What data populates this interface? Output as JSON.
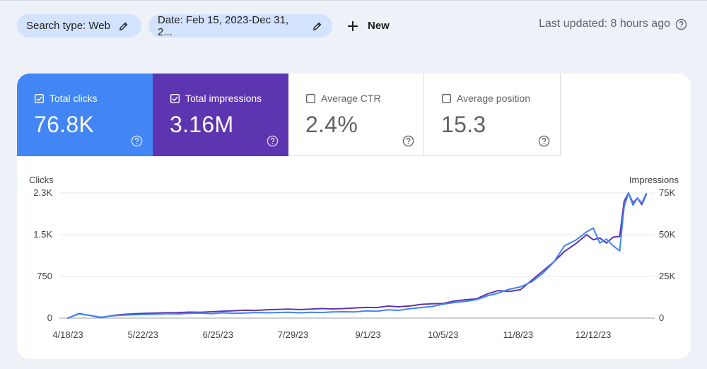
{
  "filters": {
    "search_type": "Search type: Web",
    "date": "Date: Feb 15, 2023-Dec 31, 2...",
    "new_label": "New"
  },
  "last_updated": "Last updated: 8 hours ago",
  "metrics": {
    "clicks": {
      "label": "Total clicks",
      "value": "76.8K",
      "checked": true
    },
    "impressions": {
      "label": "Total impressions",
      "value": "3.16M",
      "checked": true
    },
    "ctr": {
      "label": "Average CTR",
      "value": "2.4%",
      "checked": false
    },
    "position": {
      "label": "Average position",
      "value": "15.3",
      "checked": false
    }
  },
  "colors": {
    "clicks": "#4285f4",
    "impressions": "#5e35b1",
    "chip": "#d3e3fd",
    "background": "#eef2f8"
  },
  "chart_data": {
    "type": "line",
    "left_axis_label": "Clicks",
    "right_axis_label": "Impressions",
    "left_ticks": [
      "0",
      "750",
      "1.5K",
      "2.3K"
    ],
    "right_ticks": [
      "0",
      "25K",
      "50K",
      "75K"
    ],
    "left_tick_values": [
      0,
      750,
      1500,
      2250
    ],
    "right_tick_values": [
      0,
      25000,
      50000,
      75000
    ],
    "ylim_left": [
      0,
      2250
    ],
    "ylim_right": [
      0,
      75000
    ],
    "x_ticks": [
      "4/18/23",
      "5/22/23",
      "6/25/23",
      "7/29/23",
      "9/1/23",
      "10/5/23",
      "11/8/23",
      "12/12/23"
    ],
    "x_tick_days": [
      0,
      34,
      68,
      102,
      136,
      170,
      204,
      238
    ],
    "x_range_days": [
      0,
      262
    ],
    "series": [
      {
        "name": "Total clicks",
        "axis": "left",
        "color": "#4285f4",
        "days": [
          0,
          5,
          10,
          15,
          20,
          25,
          30,
          35,
          40,
          45,
          50,
          55,
          60,
          65,
          70,
          75,
          80,
          85,
          90,
          95,
          100,
          105,
          110,
          115,
          120,
          125,
          130,
          135,
          140,
          145,
          150,
          155,
          160,
          165,
          170,
          175,
          180,
          185,
          190,
          195,
          200,
          205,
          210,
          215,
          220,
          225,
          230,
          235,
          238,
          241,
          244,
          247,
          250,
          252,
          254,
          256,
          258,
          260,
          262
        ],
        "values": [
          0,
          75,
          50,
          15,
          40,
          55,
          60,
          65,
          70,
          80,
          75,
          85,
          90,
          80,
          95,
          85,
          90,
          100,
          95,
          100,
          105,
          95,
          105,
          100,
          110,
          115,
          110,
          130,
          125,
          150,
          140,
          170,
          190,
          210,
          250,
          280,
          300,
          330,
          400,
          450,
          520,
          560,
          650,
          800,
          1000,
          1300,
          1400,
          1550,
          1620,
          1350,
          1420,
          1300,
          1210,
          2000,
          2250,
          2030,
          2160,
          2070,
          2240
        ]
      },
      {
        "name": "Total impressions",
        "axis": "right",
        "color": "#5e35b1",
        "days": [
          0,
          5,
          10,
          15,
          20,
          25,
          30,
          35,
          40,
          45,
          50,
          55,
          60,
          65,
          70,
          75,
          80,
          85,
          90,
          95,
          100,
          105,
          110,
          115,
          120,
          125,
          130,
          135,
          140,
          145,
          150,
          155,
          160,
          165,
          170,
          175,
          180,
          185,
          190,
          195,
          200,
          205,
          210,
          215,
          220,
          225,
          230,
          235,
          238,
          241,
          244,
          247,
          250,
          252,
          254,
          256,
          258,
          260,
          262
        ],
        "values": [
          0,
          2700,
          1600,
          300,
          1500,
          2200,
          2600,
          2900,
          3000,
          3200,
          3300,
          3600,
          3500,
          3800,
          4100,
          4400,
          4700,
          4600,
          5000,
          5200,
          5400,
          5100,
          5400,
          5700,
          5500,
          5700,
          6100,
          6400,
          6300,
          7200,
          6800,
          7300,
          8200,
          8600,
          8800,
          10200,
          11000,
          11500,
          14500,
          16500,
          16000,
          17000,
          22500,
          28000,
          33500,
          40000,
          44500,
          50000,
          47000,
          48000,
          45000,
          48500,
          49000,
          70000,
          75000,
          69000,
          72000,
          68000,
          74000
        ]
      }
    ]
  }
}
